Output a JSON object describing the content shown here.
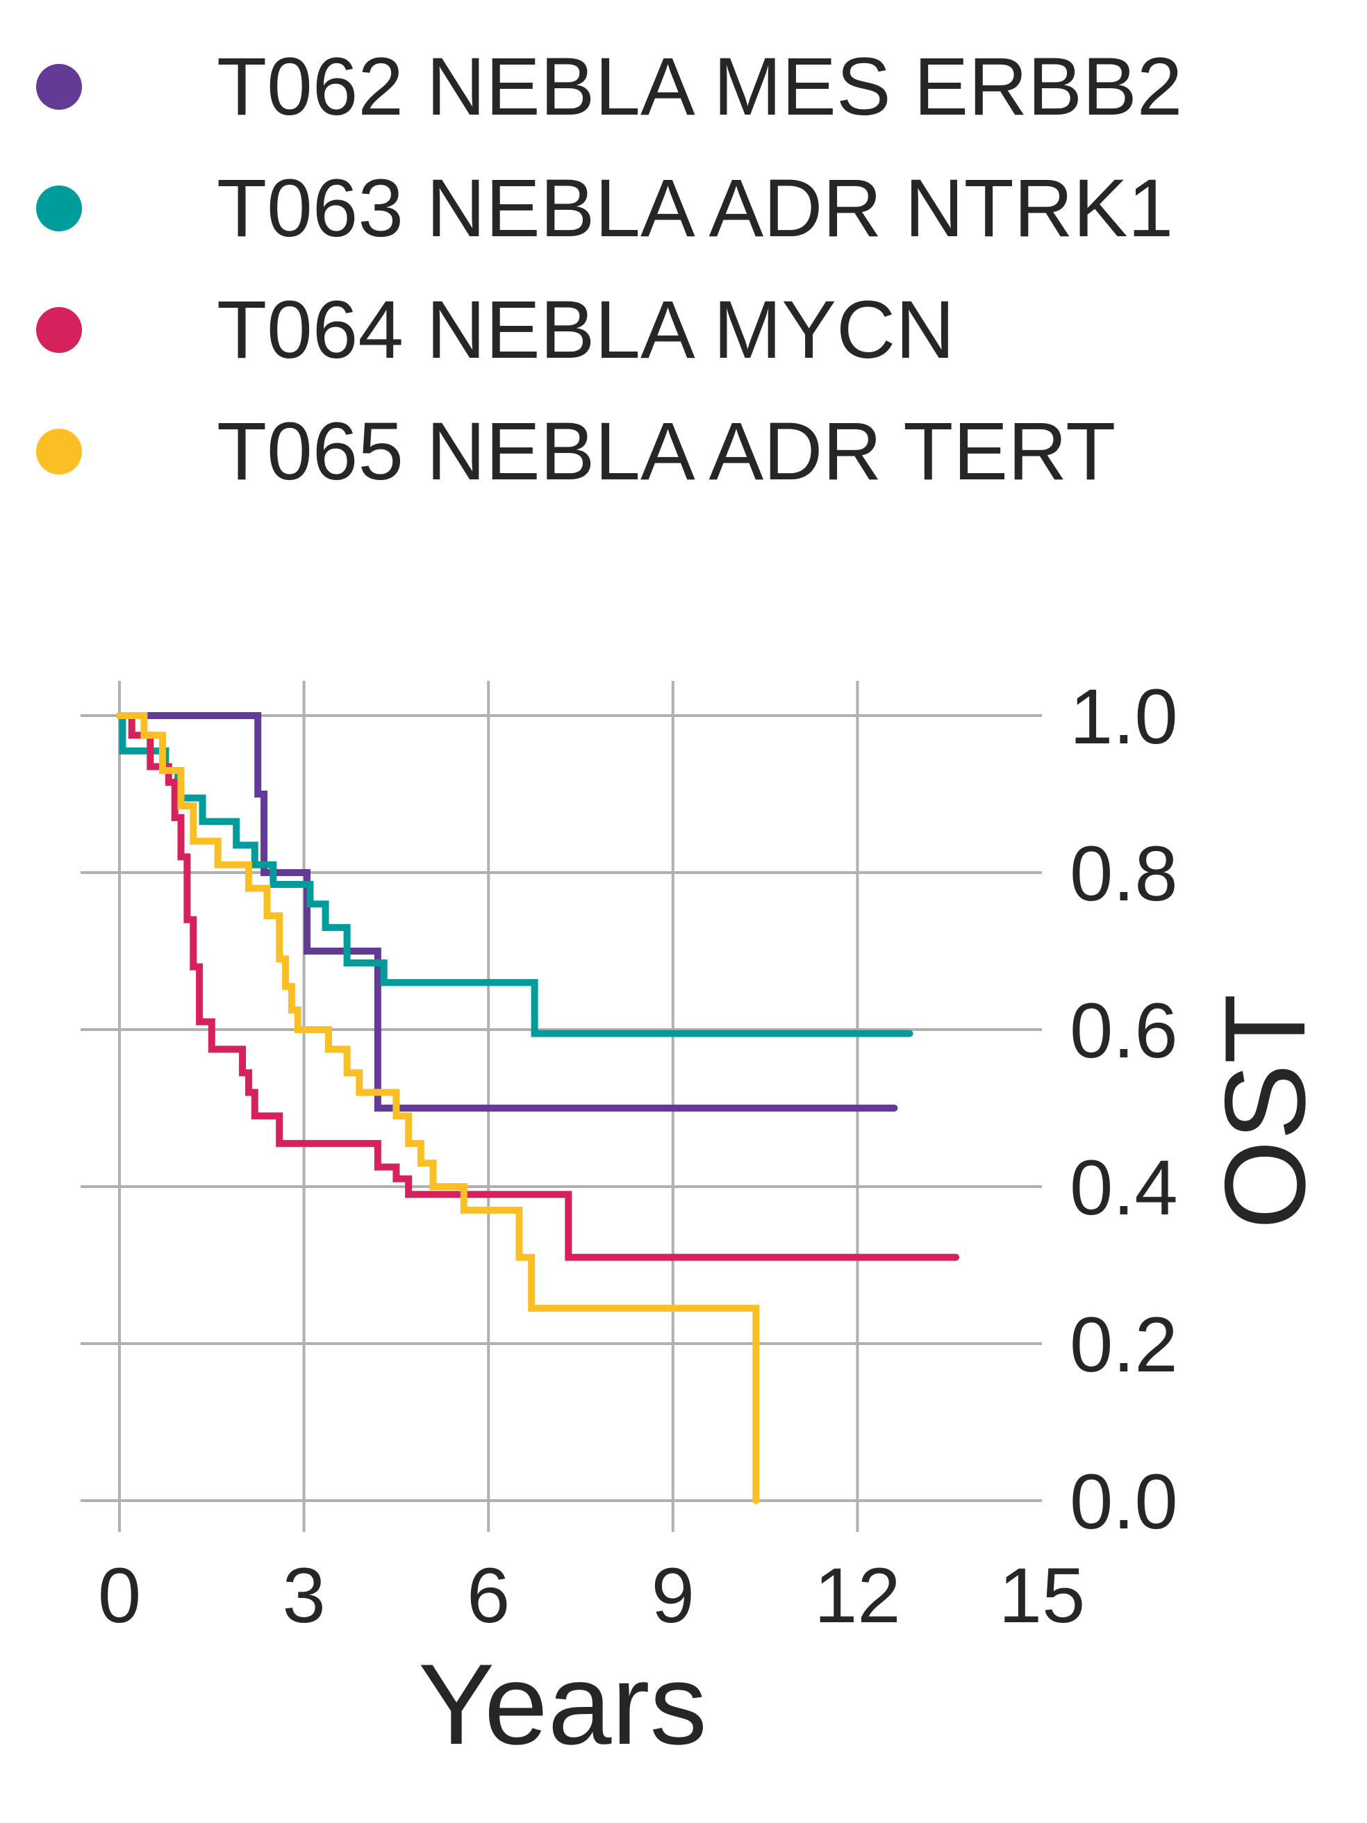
{
  "legend": {
    "items": [
      {
        "label": "T062 NEBLA MES ERBB2",
        "color": "#633b96"
      },
      {
        "label": "T063 NEBLA ADR NTRK1",
        "color": "#009c9c"
      },
      {
        "label": "T064 NEBLA MYCN",
        "color": "#d6225c"
      },
      {
        "label": "T065 NEBLA ADR TERT",
        "color": "#fbbf26"
      }
    ]
  },
  "chart_data": {
    "type": "line",
    "subtype": "kaplan-meier step",
    "xlabel": "Years",
    "ylabel": "OST",
    "xlim": [
      0,
      15
    ],
    "ylim": [
      0,
      1
    ],
    "xticks": [
      0,
      3,
      6,
      9,
      12,
      15
    ],
    "yticks": [
      0.0,
      0.2,
      0.4,
      0.6,
      0.8,
      1.0
    ],
    "ytick_labels": [
      "0.0",
      "0.2",
      "0.4",
      "0.6",
      "0.8",
      "1.0"
    ],
    "xtick_labels": [
      "0",
      "3",
      "6",
      "9",
      "12",
      "15"
    ],
    "y_axis_side": "right",
    "grid": true,
    "legend_position": "top",
    "series": [
      {
        "name": "T062 NEBLA MES ERBB2",
        "color": "#633b96",
        "x": [
          0,
          2.25,
          2.35,
          3.05,
          4.2,
          4.4,
          12.6
        ],
        "y": [
          1.0,
          0.9,
          0.8,
          0.7,
          0.5,
          0.5,
          0.5
        ]
      },
      {
        "name": "T063 NEBLA ADR NTRK1",
        "color": "#009c9c",
        "x": [
          0,
          0.05,
          0.75,
          0.95,
          1.35,
          1.9,
          2.2,
          2.5,
          3.1,
          3.35,
          3.7,
          4.3,
          6.75,
          12.85
        ],
        "y": [
          1.0,
          0.955,
          0.93,
          0.895,
          0.865,
          0.835,
          0.81,
          0.785,
          0.76,
          0.73,
          0.685,
          0.66,
          0.595,
          0.595
        ]
      },
      {
        "name": "T064 NEBLA MYCN",
        "color": "#d6225c",
        "x": [
          0,
          0.2,
          0.5,
          0.8,
          0.9,
          1.0,
          1.1,
          1.2,
          1.3,
          1.5,
          2.0,
          2.1,
          2.2,
          2.6,
          4.2,
          4.5,
          4.7,
          7.3,
          13.6
        ],
        "y": [
          1.0,
          0.975,
          0.935,
          0.915,
          0.87,
          0.82,
          0.74,
          0.68,
          0.61,
          0.575,
          0.545,
          0.52,
          0.49,
          0.455,
          0.425,
          0.41,
          0.39,
          0.31,
          0.31
        ]
      },
      {
        "name": "T065 NEBLA ADR TERT",
        "color": "#fbbf26",
        "x": [
          0,
          0.4,
          0.7,
          1.0,
          1.2,
          1.6,
          2.1,
          2.4,
          2.6,
          2.7,
          2.8,
          2.9,
          3.4,
          3.7,
          3.9,
          4.5,
          4.7,
          4.9,
          5.1,
          5.6,
          6.5,
          6.7,
          10.3,
          10.35
        ],
        "y": [
          1.0,
          0.975,
          0.93,
          0.885,
          0.84,
          0.81,
          0.78,
          0.745,
          0.69,
          0.655,
          0.625,
          0.6,
          0.575,
          0.545,
          0.52,
          0.49,
          0.455,
          0.43,
          0.4,
          0.37,
          0.31,
          0.245,
          0.245,
          0.0
        ]
      }
    ]
  }
}
